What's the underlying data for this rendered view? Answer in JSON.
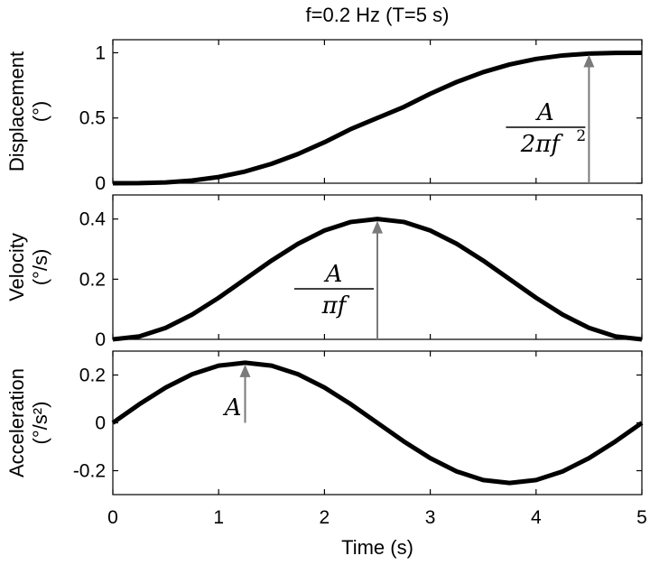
{
  "chart_data": {
    "title": "f=0.2 Hz (T=5 s)",
    "xlabel": "Time (s)",
    "xlim": [
      0,
      5
    ],
    "x_ticks": [
      "0",
      "1",
      "2",
      "3",
      "4",
      "5"
    ],
    "panels": [
      {
        "type": "line",
        "ylabel": "Displacement",
        "yunit": "(°)",
        "ylim": [
          0,
          1.1
        ],
        "y_ticks": [
          "0",
          "0.5",
          "1"
        ],
        "annotation": {
          "numerator": "A",
          "denominator": "2πf",
          "exponent": "2",
          "arrow_x": 4.5,
          "arrow_y": 1.0
        },
        "x": [
          0,
          0.25,
          0.5,
          0.75,
          1,
          1.25,
          1.5,
          1.75,
          2,
          2.25,
          2.5,
          2.75,
          3,
          3.25,
          3.5,
          3.75,
          4,
          4.25,
          4.5,
          4.75,
          5
        ],
        "values": [
          0,
          0.0008,
          0.0063,
          0.0207,
          0.0476,
          0.0898,
          0.1486,
          0.224,
          0.3142,
          0.4156,
          0.5,
          0.5844,
          0.6858,
          0.776,
          0.8514,
          0.9102,
          0.9524,
          0.9793,
          0.9937,
          0.9992,
          1.0
        ]
      },
      {
        "type": "line",
        "ylabel": "Velocity",
        "yunit": "(°/s)",
        "ylim": [
          0,
          0.48
        ],
        "y_ticks": [
          "0",
          "0.2",
          "0.4"
        ],
        "annotation": {
          "numerator": "A",
          "denominator": "πf",
          "exponent": "",
          "arrow_x": 2.5,
          "arrow_y": 0.4
        },
        "x": [
          0,
          0.25,
          0.5,
          0.75,
          1,
          1.25,
          1.5,
          1.75,
          2,
          2.25,
          2.5,
          2.75,
          3,
          3.25,
          3.5,
          3.75,
          4,
          4.25,
          4.5,
          4.75,
          5
        ],
        "values": [
          0,
          0.0098,
          0.0382,
          0.0824,
          0.1382,
          0.2,
          0.2618,
          0.3176,
          0.3618,
          0.3902,
          0.4,
          0.3902,
          0.3618,
          0.3176,
          0.2618,
          0.2,
          0.1382,
          0.0824,
          0.0382,
          0.0098,
          0
        ]
      },
      {
        "type": "line",
        "ylabel": "Acceleration",
        "yunit": "(°/s²)",
        "ylim": [
          -0.3,
          0.3
        ],
        "y_ticks": [
          "-0.2",
          "0",
          "0.2"
        ],
        "annotation": {
          "numerator": "A",
          "denominator": "",
          "exponent": "",
          "arrow_x": 1.25,
          "arrow_y": 0.2513
        },
        "x": [
          0,
          0.25,
          0.5,
          0.75,
          1,
          1.25,
          1.5,
          1.75,
          2,
          2.25,
          2.5,
          2.75,
          3,
          3.25,
          3.5,
          3.75,
          4,
          4.25,
          4.5,
          4.75,
          5
        ],
        "values": [
          0,
          0.0777,
          0.1477,
          0.2033,
          0.239,
          0.2513,
          0.239,
          0.2033,
          0.1477,
          0.0777,
          0,
          -0.0777,
          -0.1477,
          -0.2033,
          -0.239,
          -0.2513,
          -0.239,
          -0.2033,
          -0.1477,
          -0.0777,
          0
        ]
      }
    ]
  }
}
